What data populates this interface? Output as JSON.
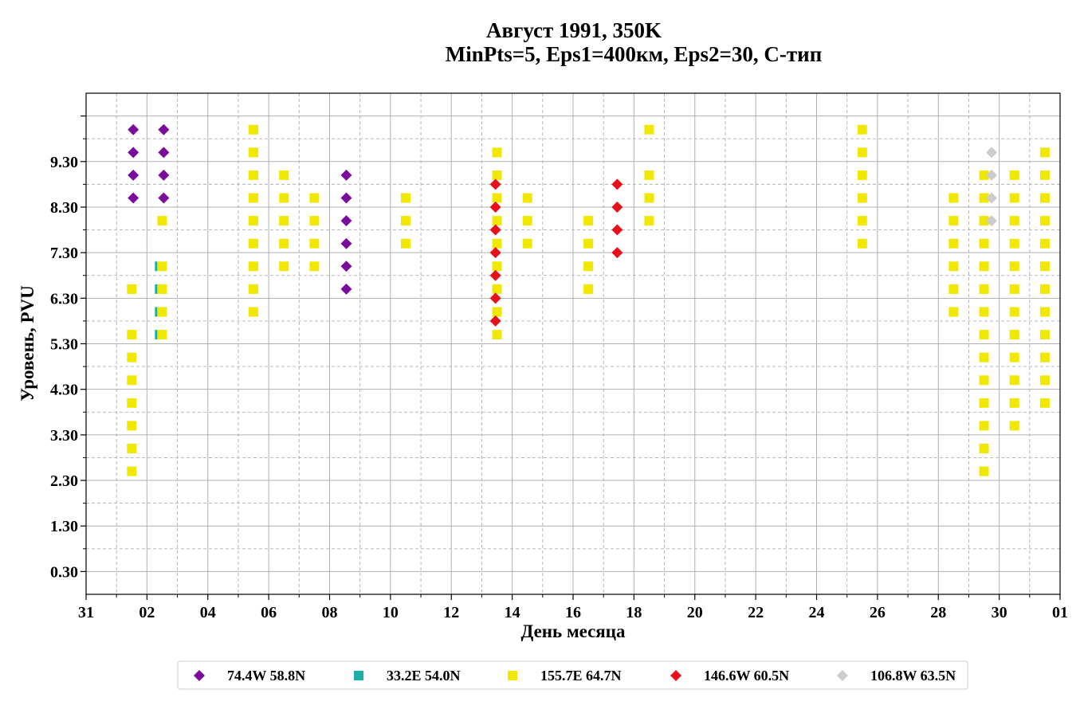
{
  "chart_data": {
    "type": "scatter",
    "title": "Август 1991, 350K",
    "subtitle": "MinPts=5, Eps1=400км, Eps2=30, С-тип",
    "xlabel": "День месяца",
    "ylabel": "Уровень, PVU",
    "x_range": [
      "1991-07-31",
      "1991-09-01"
    ],
    "x_ticks": [
      "31",
      "02",
      "04",
      "06",
      "08",
      "10",
      "12",
      "14",
      "16",
      "18",
      "20",
      "22",
      "24",
      "26",
      "28",
      "30",
      "01"
    ],
    "y_ticks": [
      "0.30",
      "1.30",
      "2.30",
      "3.30",
      "4.30",
      "5.30",
      "6.30",
      "7.30",
      "8.30",
      "9.30"
    ],
    "ylim": [
      -0.2,
      10.8
    ],
    "grid": true,
    "legend_position": "bottom-center",
    "series": [
      {
        "name": "74.4W 58.8N",
        "marker": "diamond",
        "color": "#7b0d9c",
        "points": [
          [
            "1991-08-01",
            8.5
          ],
          [
            "1991-08-01",
            9.0
          ],
          [
            "1991-08-01",
            9.5
          ],
          [
            "1991-08-01",
            10.0
          ],
          [
            "1991-08-02",
            8.5
          ],
          [
            "1991-08-02",
            9.0
          ],
          [
            "1991-08-02",
            9.5
          ],
          [
            "1991-08-02",
            10.0
          ],
          [
            "1991-08-08",
            6.5
          ],
          [
            "1991-08-08",
            7.0
          ],
          [
            "1991-08-08",
            7.5
          ],
          [
            "1991-08-08",
            8.0
          ],
          [
            "1991-08-08",
            8.5
          ],
          [
            "1991-08-08",
            9.0
          ]
        ]
      },
      {
        "name": "33.2E 54.0N",
        "marker": "square",
        "color": "#1aaea5",
        "points": [
          [
            "1991-08-02",
            5.5
          ],
          [
            "1991-08-02",
            6.0
          ],
          [
            "1991-08-02",
            6.5
          ],
          [
            "1991-08-02",
            7.0
          ]
        ]
      },
      {
        "name": "155.7E 64.7N",
        "marker": "square",
        "color": "#f0e800",
        "points": [
          [
            "1991-08-01",
            2.5
          ],
          [
            "1991-08-01",
            3.0
          ],
          [
            "1991-08-01",
            3.5
          ],
          [
            "1991-08-01",
            4.0
          ],
          [
            "1991-08-01",
            4.5
          ],
          [
            "1991-08-01",
            5.0
          ],
          [
            "1991-08-01",
            5.5
          ],
          [
            "1991-08-01",
            6.5
          ],
          [
            "1991-08-02",
            5.5
          ],
          [
            "1991-08-02",
            6.0
          ],
          [
            "1991-08-02",
            6.5
          ],
          [
            "1991-08-02",
            7.0
          ],
          [
            "1991-08-02",
            8.0
          ],
          [
            "1991-08-05",
            6.0
          ],
          [
            "1991-08-05",
            6.5
          ],
          [
            "1991-08-05",
            7.0
          ],
          [
            "1991-08-05",
            7.5
          ],
          [
            "1991-08-05",
            8.0
          ],
          [
            "1991-08-05",
            8.5
          ],
          [
            "1991-08-05",
            9.0
          ],
          [
            "1991-08-05",
            9.5
          ],
          [
            "1991-08-05",
            10.0
          ],
          [
            "1991-08-06",
            7.0
          ],
          [
            "1991-08-06",
            7.5
          ],
          [
            "1991-08-06",
            8.0
          ],
          [
            "1991-08-06",
            8.5
          ],
          [
            "1991-08-06",
            9.0
          ],
          [
            "1991-08-07",
            7.0
          ],
          [
            "1991-08-07",
            7.5
          ],
          [
            "1991-08-07",
            8.0
          ],
          [
            "1991-08-07",
            8.5
          ],
          [
            "1991-08-10",
            7.5
          ],
          [
            "1991-08-10",
            8.0
          ],
          [
            "1991-08-10",
            8.5
          ],
          [
            "1991-08-13",
            5.5
          ],
          [
            "1991-08-13",
            6.0
          ],
          [
            "1991-08-13",
            6.5
          ],
          [
            "1991-08-13",
            7.0
          ],
          [
            "1991-08-13",
            7.5
          ],
          [
            "1991-08-13",
            8.0
          ],
          [
            "1991-08-13",
            8.5
          ],
          [
            "1991-08-13",
            9.0
          ],
          [
            "1991-08-13",
            9.5
          ],
          [
            "1991-08-14",
            7.5
          ],
          [
            "1991-08-14",
            8.0
          ],
          [
            "1991-08-14",
            8.5
          ],
          [
            "1991-08-16",
            6.5
          ],
          [
            "1991-08-16",
            7.0
          ],
          [
            "1991-08-16",
            7.5
          ],
          [
            "1991-08-16",
            8.0
          ],
          [
            "1991-08-18",
            8.0
          ],
          [
            "1991-08-18",
            8.5
          ],
          [
            "1991-08-18",
            9.0
          ],
          [
            "1991-08-18",
            10.0
          ],
          [
            "1991-08-25",
            7.5
          ],
          [
            "1991-08-25",
            8.0
          ],
          [
            "1991-08-25",
            8.5
          ],
          [
            "1991-08-25",
            9.0
          ],
          [
            "1991-08-25",
            9.5
          ],
          [
            "1991-08-25",
            10.0
          ],
          [
            "1991-08-28",
            6.0
          ],
          [
            "1991-08-28",
            6.5
          ],
          [
            "1991-08-28",
            7.0
          ],
          [
            "1991-08-28",
            7.5
          ],
          [
            "1991-08-28",
            8.0
          ],
          [
            "1991-08-28",
            8.5
          ],
          [
            "1991-08-29",
            2.5
          ],
          [
            "1991-08-29",
            3.0
          ],
          [
            "1991-08-29",
            3.5
          ],
          [
            "1991-08-29",
            4.0
          ],
          [
            "1991-08-29",
            4.5
          ],
          [
            "1991-08-29",
            5.0
          ],
          [
            "1991-08-29",
            5.5
          ],
          [
            "1991-08-29",
            6.0
          ],
          [
            "1991-08-29",
            6.5
          ],
          [
            "1991-08-29",
            7.0
          ],
          [
            "1991-08-29",
            7.5
          ],
          [
            "1991-08-29",
            8.0
          ],
          [
            "1991-08-29",
            8.5
          ],
          [
            "1991-08-29",
            9.0
          ],
          [
            "1991-08-30",
            3.5
          ],
          [
            "1991-08-30",
            4.0
          ],
          [
            "1991-08-30",
            4.5
          ],
          [
            "1991-08-30",
            5.0
          ],
          [
            "1991-08-30",
            5.5
          ],
          [
            "1991-08-30",
            6.0
          ],
          [
            "1991-08-30",
            6.5
          ],
          [
            "1991-08-30",
            7.0
          ],
          [
            "1991-08-30",
            7.5
          ],
          [
            "1991-08-30",
            8.0
          ],
          [
            "1991-08-30",
            8.5
          ],
          [
            "1991-08-30",
            9.0
          ],
          [
            "1991-08-31",
            4.0
          ],
          [
            "1991-08-31",
            4.5
          ],
          [
            "1991-08-31",
            5.0
          ],
          [
            "1991-08-31",
            5.5
          ],
          [
            "1991-08-31",
            6.0
          ],
          [
            "1991-08-31",
            6.5
          ],
          [
            "1991-08-31",
            7.0
          ],
          [
            "1991-08-31",
            7.5
          ],
          [
            "1991-08-31",
            8.0
          ],
          [
            "1991-08-31",
            8.5
          ],
          [
            "1991-08-31",
            9.0
          ],
          [
            "1991-08-31",
            9.5
          ]
        ]
      },
      {
        "name": "146.6W 60.5N",
        "marker": "diamond",
        "color": "#e8101a",
        "points": [
          [
            "1991-08-13",
            5.8
          ],
          [
            "1991-08-13",
            6.3
          ],
          [
            "1991-08-13",
            6.8
          ],
          [
            "1991-08-13",
            7.3
          ],
          [
            "1991-08-13",
            7.8
          ],
          [
            "1991-08-13",
            8.3
          ],
          [
            "1991-08-13",
            8.8
          ],
          [
            "1991-08-17",
            7.3
          ],
          [
            "1991-08-17",
            7.8
          ],
          [
            "1991-08-17",
            8.3
          ],
          [
            "1991-08-17",
            8.8
          ]
        ]
      },
      {
        "name": "106.8W 63.5N",
        "marker": "diamond",
        "color": "#cccccc",
        "points": [
          [
            "1991-08-29",
            8.0
          ],
          [
            "1991-08-29",
            8.5
          ],
          [
            "1991-08-29",
            9.0
          ],
          [
            "1991-08-29",
            9.5
          ]
        ]
      }
    ]
  }
}
